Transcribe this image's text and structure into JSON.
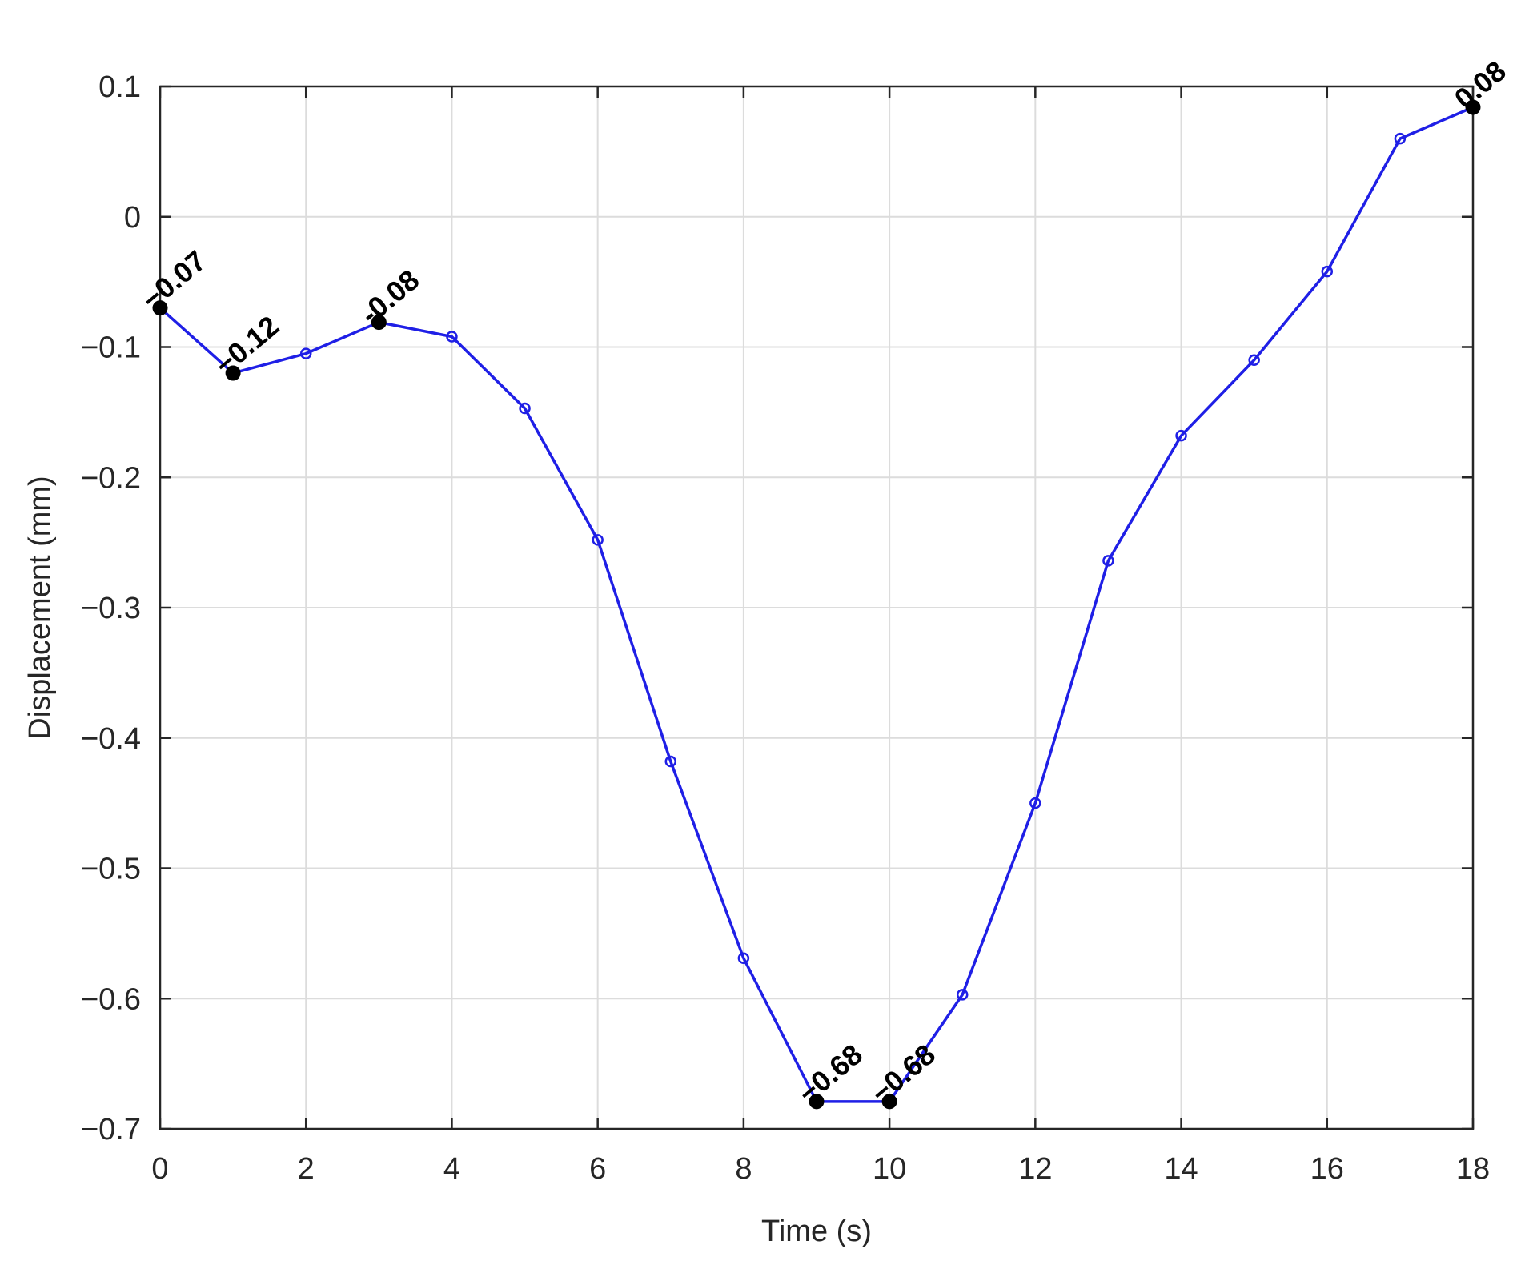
{
  "chart_data": {
    "type": "line",
    "title": "",
    "xlabel": "Time (s)",
    "ylabel": "Displacement (mm)",
    "xlim": [
      0,
      18
    ],
    "ylim": [
      -0.7,
      0.1
    ],
    "grid": true,
    "x_ticks": [
      0,
      2,
      4,
      6,
      8,
      10,
      12,
      14,
      16,
      18
    ],
    "x_tick_labels": [
      "0",
      "2",
      "4",
      "6",
      "8",
      "10",
      "12",
      "14",
      "16",
      "18"
    ],
    "y_ticks": [
      0.1,
      0,
      -0.1,
      -0.2,
      -0.3,
      -0.4,
      -0.5,
      -0.6,
      -0.7
    ],
    "y_tick_labels": [
      "0.1",
      "0",
      "−0.1",
      "−0.2",
      "−0.3",
      "−0.4",
      "−0.5",
      "−0.6",
      "−0.7"
    ],
    "series": [
      {
        "color": "#1f1fe6",
        "marker": "circle",
        "x": [
          0,
          1,
          2,
          3,
          4,
          5,
          6,
          7,
          8,
          9,
          10,
          11,
          12,
          13,
          14,
          15,
          16,
          17,
          18
        ],
        "y": [
          -0.07,
          -0.12,
          -0.105,
          -0.081,
          -0.092,
          -0.147,
          -0.248,
          -0.418,
          -0.569,
          -0.679,
          -0.679,
          -0.597,
          -0.45,
          -0.264,
          -0.168,
          -0.11,
          -0.042,
          0.06,
          0.084
        ]
      }
    ],
    "annotations": [
      {
        "x": 0,
        "y": -0.07,
        "text": "−0.07"
      },
      {
        "x": 1,
        "y": -0.12,
        "text": "−0.12"
      },
      {
        "x": 3,
        "y": -0.081,
        "text": "-0.08"
      },
      {
        "x": 9,
        "y": -0.679,
        "text": "−0.68"
      },
      {
        "x": 10,
        "y": -0.679,
        "text": "−0.68"
      },
      {
        "x": 18,
        "y": 0.084,
        "text": "0.08"
      }
    ]
  },
  "colors": {
    "line": "#1f1fe6",
    "marker_highlight": "#000000",
    "grid": "#dcdcdc",
    "axes": "#262626"
  }
}
